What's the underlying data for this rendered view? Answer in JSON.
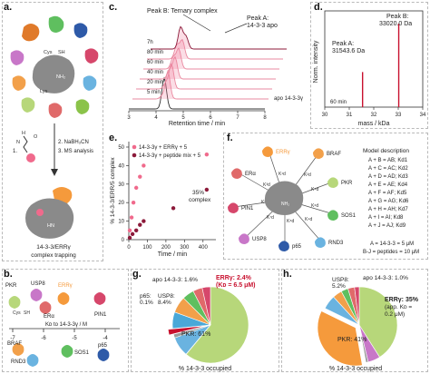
{
  "colors": {
    "ternary": "#2b2b2b",
    "apo": "#c8102e",
    "pink": "#f06a8c",
    "darkred": "#8c1a3a",
    "err": "#f59a3c",
    "pkr": "#b7d77a",
    "usp8": "#c877c8",
    "p65": "#2e5aa8",
    "sos1": "#5fbf5f",
    "rnd3": "#6ab3e0",
    "braf": "#f2a04a",
    "pin1": "#d6476b",
    "era": "#e06a6a",
    "gray": "#9a9a9a"
  },
  "panel_labels": {
    "a": "a.",
    "b": "b.",
    "c": "c.",
    "d": "d.",
    "e": "e.",
    "f": "f.",
    "g": "g.",
    "h": "h."
  },
  "panel_a": {
    "steps": {
      "s1": "1.",
      "s2": "2. NaBH₃CN",
      "s3": "3. MS analysis"
    },
    "molecule_labels": {
      "h": "H",
      "o": "O",
      "n": "N"
    },
    "residue_labels": {
      "cys": "Cys",
      "sh": "SH",
      "lys": "Lys",
      "nh2": "NH₂",
      "hn": "HN"
    },
    "caption_line1": "14-3-3/ERRγ",
    "caption_line2": "complex trapping"
  },
  "panel_b": {
    "axis_title": "Kᴅ to 14-3-3γ / M",
    "ticks": [
      "-7",
      "-6",
      "-5",
      "-4"
    ],
    "top_labels": [
      "PKR",
      "USP8",
      "ERRγ",
      "ERα",
      "PIN1"
    ],
    "bottom_labels": [
      "BRAF",
      "RND3",
      "SOS1",
      "p65"
    ],
    "residue_labels": {
      "cys": "Cys",
      "sh": "SH"
    }
  },
  "panel_c": {
    "annotation_b": "Peak B: Ternary complex",
    "annotation_a_line1": "Peak A:",
    "annotation_a_line2": "14-3-3 apo",
    "time_labels": [
      "7h",
      "80 min",
      "60 min",
      "40 min",
      "20 min",
      "5 min"
    ],
    "apo_label": "apo 14-3-3γ",
    "xlabel": "Retention time / min",
    "ticks": [
      "3",
      "4",
      "5",
      "6",
      "7",
      "8"
    ]
  },
  "panel_d": {
    "peak_a_label": "Peak A:",
    "peak_a_value": "31543.6 Da",
    "peak_b_label": "Peak B:",
    "peak_b_value": "33020.0 Da",
    "ylabel": "Norm. intensity",
    "xlabel": "mass / kDa",
    "inset_label": "60 min",
    "ticks": [
      "30",
      "31",
      "32",
      "33",
      "34"
    ]
  },
  "panel_e": {
    "legend1": "14-3-3γ + ERRγ + 5",
    "legend2": "14-3-3γ + peptide mix + 5",
    "annotation_line1": "35%",
    "annotation_line2": "complex",
    "ylabel": "% 14-3-3/ERR/5 complex",
    "xlabel": "Time / min",
    "x_ticks": [
      "0",
      "100",
      "200",
      "300",
      "400"
    ],
    "y_ticks": [
      "0",
      "10",
      "20",
      "30",
      "40",
      "50"
    ]
  },
  "panel_f": {
    "labels": [
      "ERRγ",
      "BRAF",
      "ERα",
      "PKR",
      "PIN1",
      "SOS1",
      "USP8",
      "p65",
      "RND3"
    ],
    "kd_labels": [
      "K¹d",
      "K²d",
      "K³d",
      "K⁴d",
      "K⁵d",
      "K⁶d",
      "K⁷d",
      "K⁸d",
      "K⁹d"
    ],
    "center_nh2": "NH₂",
    "model_title": "Model description",
    "model_lines": [
      "A + B = AB; Kd1",
      "A + C = AC; Kd2",
      "A + D = AD; Kd3",
      "A + E = AE; Kd4",
      "A + F = AF; Kd5",
      "A + G = AG; Kd6",
      "A + H = AH; Kd7",
      "A + I = AI; Kd8",
      "A + J = AJ; Kd9"
    ],
    "conc_line1": "A = 14-3-3 = 5 μM",
    "conc_line2": "B-J = peptides = 10 μM"
  },
  "panel_g": {
    "label_apo": "apo 14-3-3: 1.6%",
    "label_err_line1": "ERRγ: 2.4%",
    "label_err_line2": "(Kᴅ = 6.5 μM)",
    "label_p65": "p65:",
    "label_p65_value": "0.1%",
    "label_usp8": "USP8:",
    "label_usp8_value": "8.4%",
    "label_pkr": "PKR: 61%",
    "footer": "% 14-3-3 occupied"
  },
  "panel_h": {
    "label_usp8": "USP8:",
    "label_usp8_value": "5.2%",
    "label_apo": "apo 14-3-3: 1.0%",
    "label_err_line1": "ERRγ: 35%",
    "label_err_line2": "(app. Kᴅ =",
    "label_err_line3": "0.2 μM)",
    "label_pkr": "PKR: 41%",
    "footer": "% 14-3-3 occupied"
  },
  "chart_data": [
    {
      "type": "line",
      "panel": "c",
      "xlabel": "Retention time / min",
      "xlim": [
        3,
        8
      ],
      "series": [
        {
          "name": "apo 14-3-3γ",
          "peaks": [
            {
              "x": 4.3,
              "height": 1.0
            }
          ]
        },
        {
          "name": "5 min",
          "peaks": [
            {
              "x": 4.3,
              "height": 0.9
            },
            {
              "x": 4.1,
              "height": 0.1
            }
          ]
        },
        {
          "name": "20 min",
          "peaks": [
            {
              "x": 4.3,
              "height": 0.8
            },
            {
              "x": 4.1,
              "height": 0.2
            }
          ]
        },
        {
          "name": "40 min",
          "peaks": [
            {
              "x": 4.3,
              "height": 0.7
            },
            {
              "x": 4.1,
              "height": 0.3
            }
          ]
        },
        {
          "name": "60 min",
          "peaks": [
            {
              "x": 4.3,
              "height": 0.65
            },
            {
              "x": 4.1,
              "height": 0.38
            }
          ]
        },
        {
          "name": "80 min",
          "peaks": [
            {
              "x": 4.3,
              "height": 0.6
            },
            {
              "x": 4.1,
              "height": 0.45
            }
          ]
        },
        {
          "name": "7h",
          "peaks": [
            {
              "x": 4.3,
              "height": 0.4
            },
            {
              "x": 4.1,
              "height": 0.7
            }
          ]
        }
      ]
    },
    {
      "type": "line",
      "panel": "d",
      "xlabel": "mass / kDa",
      "ylabel": "Norm. intensity",
      "xlim": [
        30,
        34
      ],
      "peaks": [
        {
          "x": 31.5436,
          "y": 0.42
        },
        {
          "x": 33.02,
          "y": 1.0
        }
      ]
    },
    {
      "type": "scatter",
      "panel": "e",
      "xlabel": "Time / min",
      "ylabel": "% 14-3-3/ERR/5 complex",
      "xlim": [
        0,
        450
      ],
      "ylim": [
        0,
        50
      ],
      "series": [
        {
          "name": "14-3-3γ + ERRγ + 5",
          "color": "#f06a8c",
          "x": [
            5,
            15,
            25,
            40,
            60,
            80,
            420
          ],
          "y": [
            5,
            12,
            20,
            28,
            34,
            40,
            46
          ]
        },
        {
          "name": "14-3-3γ + peptide mix + 5",
          "color": "#8c1a3a",
          "x": [
            5,
            20,
            40,
            60,
            80,
            240,
            420
          ],
          "y": [
            1,
            3,
            5,
            8,
            10,
            17,
            27
          ]
        }
      ]
    },
    {
      "type": "pie",
      "panel": "g",
      "labels": [
        "PKR",
        "p65",
        "USP8",
        "apo 14-3-3",
        "ERRγ",
        "RND3",
        "BRAF",
        "SOS1",
        "ERα",
        "PIN1"
      ],
      "values": [
        61,
        0.1,
        8.4,
        1.6,
        2.4,
        7,
        7,
        5,
        4,
        3.5
      ]
    },
    {
      "type": "pie",
      "panel": "h",
      "labels": [
        "PKR",
        "USP8",
        "apo 14-3-3",
        "ERRγ",
        "RND3",
        "BRAF",
        "SOS1",
        "ERα",
        "PIN1"
      ],
      "values": [
        41,
        5.2,
        1.0,
        35,
        6,
        4,
        3,
        2.8,
        2
      ]
    }
  ]
}
